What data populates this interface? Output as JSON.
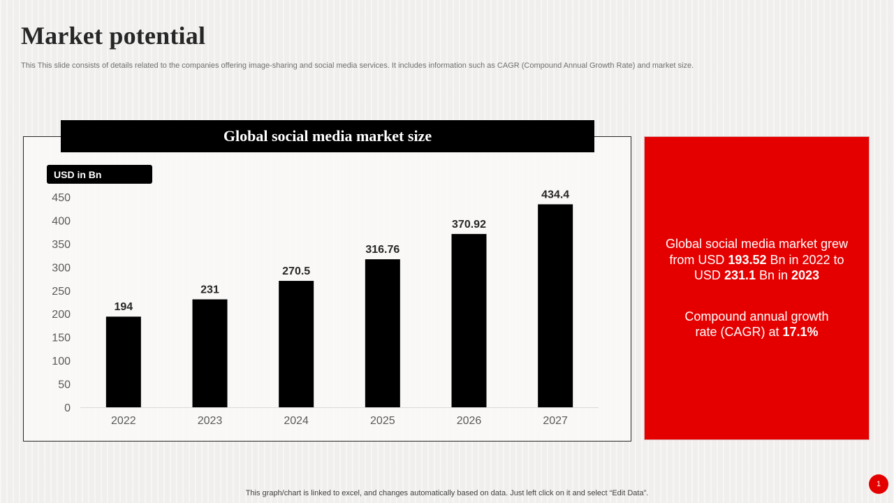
{
  "title": "Market potential",
  "subtitle": "This This slide consists of details related to the companies offering image-sharing and social media services. It includes information such as CAGR (Compound Annual Growth Rate) and market size.",
  "chart_banner": "Global social media market size",
  "unit_label": "USD in Bn",
  "chart_data": {
    "type": "bar",
    "title": "Global social media market size",
    "ylabel": "USD in Bn",
    "xlabel": "",
    "categories": [
      "2022",
      "2023",
      "2024",
      "2025",
      "2026",
      "2027"
    ],
    "values": [
      194,
      231,
      270.5,
      316.76,
      370.92,
      434.4
    ],
    "data_labels": [
      "194",
      "231",
      "270.5",
      "316.76",
      "370.92",
      "434.4"
    ],
    "ylim": [
      0,
      450
    ],
    "yticks": [
      0,
      50,
      100,
      150,
      200,
      250,
      300,
      350,
      400,
      450
    ],
    "bar_color": "#000000",
    "grid": false,
    "legend": "none"
  },
  "panel": {
    "line1": "Global social media market grew",
    "line2_a": "from USD ",
    "line2_b": "193.52",
    "line2_c": " Bn in 2022 to",
    "line3_a": "USD ",
    "line3_b": "231.1",
    "line3_c": " Bn in ",
    "line3_d": "2023",
    "line4": "Compound annual growth",
    "line5_a": "rate (CAGR) at ",
    "line5_b": "17.1%"
  },
  "footer": "This graph/chart is linked to excel,  and changes automatically based on data. Just left click on it and select “Edit Data”.",
  "page_number": "1",
  "colors": {
    "accent": "#e50000",
    "dark": "#000000",
    "text": "#262626"
  }
}
